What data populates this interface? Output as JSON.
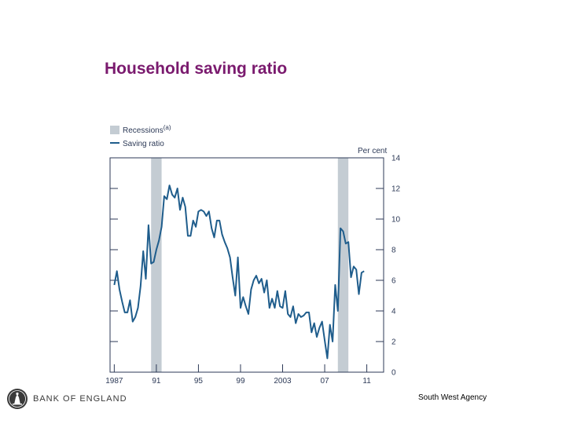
{
  "slide": {
    "title": "Household saving ratio",
    "footer_left": "BANK OF ENGLAND",
    "footer_right": "South West Agency",
    "logo_icon": "britannia-seal-icon"
  },
  "chart_data": {
    "type": "line",
    "title": "Household saving ratio",
    "ylabel": "Per cent",
    "ylim": [
      0,
      14
    ],
    "yticks": [
      0,
      2,
      4,
      6,
      8,
      10,
      12,
      14
    ],
    "xlim": [
      1986.6,
      2012.6
    ],
    "xticks": [
      {
        "value": 1987,
        "label": "1987"
      },
      {
        "value": 1991,
        "label": "91"
      },
      {
        "value": 1995,
        "label": "95"
      },
      {
        "value": 1999,
        "label": "99"
      },
      {
        "value": 2003,
        "label": "2003"
      },
      {
        "value": 2007,
        "label": "07"
      },
      {
        "value": 2011,
        "label": "11"
      }
    ],
    "legend": [
      {
        "label": "Recessions",
        "superscript": "(a)",
        "kind": "band",
        "color": "#c4ccd3"
      },
      {
        "label": "Saving ratio",
        "kind": "line",
        "color": "#1f5d8c"
      }
    ],
    "recessions": [
      [
        1990.5,
        1991.5
      ],
      [
        2008.25,
        2009.25
      ]
    ],
    "series": [
      {
        "name": "Saving ratio",
        "color": "#1f5d8c",
        "points": [
          [
            1987.0,
            5.7
          ],
          [
            1987.25,
            6.6
          ],
          [
            1987.5,
            5.4
          ],
          [
            1987.75,
            4.6
          ],
          [
            1988.0,
            3.9
          ],
          [
            1988.25,
            3.9
          ],
          [
            1988.5,
            4.7
          ],
          [
            1988.75,
            3.3
          ],
          [
            1989.0,
            3.6
          ],
          [
            1989.25,
            4.2
          ],
          [
            1989.5,
            5.6
          ],
          [
            1989.75,
            7.9
          ],
          [
            1990.0,
            6.1
          ],
          [
            1990.25,
            9.6
          ],
          [
            1990.5,
            7.1
          ],
          [
            1990.75,
            7.2
          ],
          [
            1991.0,
            8.0
          ],
          [
            1991.25,
            8.6
          ],
          [
            1991.5,
            9.5
          ],
          [
            1991.75,
            11.5
          ],
          [
            1992.0,
            11.3
          ],
          [
            1992.25,
            12.2
          ],
          [
            1992.5,
            11.6
          ],
          [
            1992.75,
            11.4
          ],
          [
            1993.0,
            12.0
          ],
          [
            1993.25,
            10.6
          ],
          [
            1993.5,
            11.4
          ],
          [
            1993.75,
            10.8
          ],
          [
            1994.0,
            8.9
          ],
          [
            1994.25,
            8.9
          ],
          [
            1994.5,
            9.9
          ],
          [
            1994.75,
            9.5
          ],
          [
            1995.0,
            10.5
          ],
          [
            1995.25,
            10.6
          ],
          [
            1995.5,
            10.5
          ],
          [
            1995.75,
            10.2
          ],
          [
            1996.0,
            10.5
          ],
          [
            1996.25,
            9.4
          ],
          [
            1996.5,
            8.8
          ],
          [
            1996.75,
            9.9
          ],
          [
            1997.0,
            9.9
          ],
          [
            1997.25,
            9.0
          ],
          [
            1997.5,
            8.5
          ],
          [
            1997.75,
            8.1
          ],
          [
            1998.0,
            7.5
          ],
          [
            1998.25,
            6.2
          ],
          [
            1998.5,
            5.0
          ],
          [
            1998.75,
            7.5
          ],
          [
            1999.0,
            4.2
          ],
          [
            1999.25,
            4.9
          ],
          [
            1999.5,
            4.3
          ],
          [
            1999.75,
            3.8
          ],
          [
            2000.0,
            5.4
          ],
          [
            2000.25,
            6.0
          ],
          [
            2000.5,
            6.3
          ],
          [
            2000.75,
            5.8
          ],
          [
            2001.0,
            6.1
          ],
          [
            2001.25,
            5.2
          ],
          [
            2001.5,
            6.0
          ],
          [
            2001.75,
            4.2
          ],
          [
            2002.0,
            4.8
          ],
          [
            2002.25,
            4.2
          ],
          [
            2002.5,
            5.3
          ],
          [
            2002.75,
            4.3
          ],
          [
            2003.0,
            4.2
          ],
          [
            2003.25,
            5.3
          ],
          [
            2003.5,
            3.8
          ],
          [
            2003.75,
            3.6
          ],
          [
            2004.0,
            4.3
          ],
          [
            2004.25,
            3.2
          ],
          [
            2004.5,
            3.8
          ],
          [
            2004.75,
            3.6
          ],
          [
            2005.0,
            3.7
          ],
          [
            2005.25,
            3.9
          ],
          [
            2005.5,
            3.9
          ],
          [
            2005.75,
            2.6
          ],
          [
            2006.0,
            3.2
          ],
          [
            2006.25,
            2.3
          ],
          [
            2006.5,
            2.9
          ],
          [
            2006.75,
            3.3
          ],
          [
            2007.0,
            2.1
          ],
          [
            2007.25,
            0.9
          ],
          [
            2007.5,
            3.1
          ],
          [
            2007.75,
            2.0
          ],
          [
            2008.0,
            5.7
          ],
          [
            2008.25,
            4.0
          ],
          [
            2008.5,
            9.4
          ],
          [
            2008.75,
            9.2
          ],
          [
            2009.0,
            8.4
          ],
          [
            2009.25,
            8.5
          ],
          [
            2009.5,
            6.2
          ],
          [
            2009.75,
            6.9
          ],
          [
            2010.0,
            6.7
          ],
          [
            2010.25,
            5.1
          ],
          [
            2010.5,
            6.5
          ],
          [
            2010.75,
            6.6
          ]
        ]
      }
    ]
  }
}
